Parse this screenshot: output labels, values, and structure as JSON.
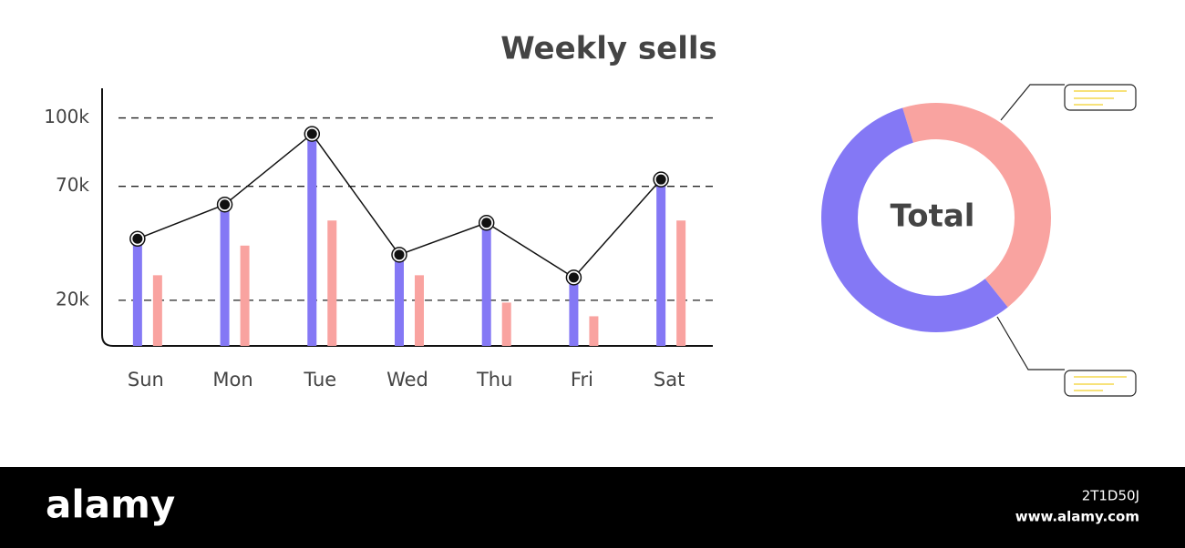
{
  "chart_data": [
    {
      "type": "bar",
      "title": "Weekly sells",
      "categories": [
        "Sun",
        "Mon",
        "Tue",
        "Wed",
        "Thu",
        "Fri",
        "Sat"
      ],
      "series": [
        {
          "color": "#8478f5",
          "values": [
            47000,
            62000,
            93000,
            40000,
            54000,
            30000,
            73000
          ]
        },
        {
          "color": "#f9a3a0",
          "values": [
            31000,
            44000,
            55000,
            31000,
            19000,
            13000,
            55000
          ]
        },
        {
          "type": "line",
          "color": "#111111",
          "values": [
            47000,
            62000,
            93000,
            40000,
            54000,
            30000,
            73000
          ]
        }
      ],
      "ylim": [
        0,
        113000
      ],
      "yticks": [
        {
          "value": 20000,
          "label": "20k"
        },
        {
          "value": 70000,
          "label": "70k"
        },
        {
          "value": 100000,
          "label": "100k"
        }
      ],
      "grid": true
    },
    {
      "type": "donut",
      "center_label": "Total",
      "values": [
        44,
        56
      ],
      "colors": [
        "#f9a3a0",
        "#8478f5"
      ]
    }
  ],
  "watermark": {
    "brand": "alamy",
    "id": "2T1D50J",
    "url": "www.alamy.com"
  }
}
